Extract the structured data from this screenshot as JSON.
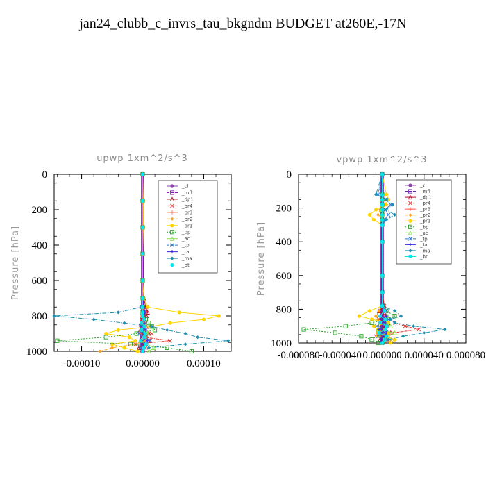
{
  "title": "jan24_clubb_c_invrs_tau_bkgndm  BUDGET at260E,-17N",
  "chart_data": [
    {
      "type": "line",
      "title": "upwp   1xm^2/s^3",
      "ylabel": "Pressure [hPa]",
      "xlabel": "",
      "xlim": [
        -0.000145,
        0.000145
      ],
      "ylim": [
        1000,
        0
      ],
      "xticks": [
        -0.0001,
        0,
        0.0001
      ],
      "xtick_labels": [
        "-0.00010",
        "0.00000",
        "0.00010"
      ],
      "yticks": [
        0,
        200,
        400,
        600,
        800,
        1000
      ],
      "ytick_labels": [
        "0",
        "200",
        "400",
        "600",
        "800",
        "1000"
      ],
      "legend_position": "top-right",
      "pressure": [
        0,
        150,
        300,
        450,
        600,
        700,
        750,
        780,
        800,
        820,
        840,
        860,
        880,
        900,
        920,
        940,
        960,
        980,
        1000
      ],
      "series": [
        {
          "name": "_cl",
          "color": "#8e44ad",
          "values": [
            0,
            0,
            0,
            0,
            0,
            0,
            0,
            0,
            0,
            0,
            0,
            0,
            0,
            0,
            0,
            0,
            0,
            0,
            0
          ]
        },
        {
          "name": "_mfl",
          "color": "#7b1fa2",
          "values": [
            0,
            0,
            0,
            0,
            0,
            0,
            0,
            0,
            0,
            0,
            0,
            0,
            0,
            0,
            0,
            0,
            0,
            0,
            0
          ]
        },
        {
          "name": "_dp1",
          "color": "#b0102a",
          "values": [
            0,
            0,
            0,
            0,
            0,
            2e-06,
            5e-06,
            8e-06,
            6e-06,
            2e-06,
            -3e-06,
            6e-06,
            -4e-06,
            1e-05,
            -2e-06,
            1.2e-05,
            4e-06,
            -6e-06,
            0
          ]
        },
        {
          "name": "_pr4",
          "color": "#e0302a",
          "values": [
            0,
            0,
            0,
            0,
            0,
            0,
            2e-06,
            4e-06,
            3e-06,
            -2e-06,
            5e-06,
            -3e-06,
            4e-06,
            1.5e-05,
            2e-06,
            4.5e-05,
            -1.2e-05,
            5e-06,
            0
          ]
        },
        {
          "name": "_pr3",
          "color": "#ff5a36",
          "values": [
            0,
            0,
            0,
            0,
            0,
            0,
            0,
            2e-06,
            3e-06,
            2e-06,
            -2e-06,
            4e-06,
            2e-06,
            -4e-06,
            8e-06,
            6e-06,
            -3e-06,
            3e-06,
            0
          ]
        },
        {
          "name": "_pr2",
          "color": "#ffa020",
          "values": [
            0,
            0,
            0,
            0,
            0,
            0,
            0,
            0,
            -1e-06,
            2e-06,
            0,
            2e-06,
            -3e-06,
            6e-06,
            -2e-06,
            4e-06,
            -1.2e-05,
            -5e-05,
            -7e-05
          ]
        },
        {
          "name": "_pr1",
          "color": "#ffd400",
          "values": [
            0,
            1e-06,
            1e-06,
            0,
            0,
            2e-06,
            8e-06,
            6e-05,
            0.000125,
            0.0001,
            4.5e-05,
            1.5e-05,
            -4e-05,
            -6e-05,
            -2.2e-05,
            -1.2e-05,
            -5e-05,
            -3e-05,
            -8e-06
          ]
        },
        {
          "name": "_bp",
          "color": "#2ca02c",
          "values": [
            0,
            0,
            0,
            0,
            0,
            0,
            0,
            0,
            2e-06,
            5e-06,
            1e-05,
            1.5e-05,
            2e-05,
            -1e-05,
            -6e-05,
            -0.00014,
            -2e-05,
            4e-05,
            8e-05
          ]
        },
        {
          "name": "_ac",
          "color": "#8ee05a",
          "values": [
            0,
            0,
            0,
            0,
            0,
            0,
            0,
            0,
            0,
            3e-06,
            4e-06,
            2e-06,
            6e-06,
            8e-06,
            5e-06,
            -4e-06,
            8e-06,
            1.8e-05,
            1e-05
          ]
        },
        {
          "name": "_tp",
          "color": "#2b7bd8",
          "values": [
            0,
            0,
            0,
            0,
            0,
            0,
            -2e-06,
            2e-06,
            -1e-06,
            3e-06,
            -2e-06,
            2e-06,
            3e-06,
            -6e-06,
            5e-06,
            1.2e-05,
            6e-06,
            -3e-06,
            0
          ]
        },
        {
          "name": "_ta",
          "color": "#3b2bd8",
          "values": [
            0,
            0,
            0,
            0,
            0,
            0,
            2e-06,
            4e-06,
            2e-06,
            1e-06,
            3e-06,
            -3e-06,
            6e-06,
            4e-06,
            -4e-06,
            8e-06,
            -3e-06,
            2e-06,
            0
          ]
        },
        {
          "name": "_ma",
          "color": "#1f8fb0",
          "values": [
            0,
            0,
            0,
            0,
            0,
            0,
            -3e-06,
            -4e-05,
            -0.000145,
            -8e-05,
            -3e-05,
            1.5e-05,
            4e-05,
            7e-05,
            9e-05,
            0.00014,
            7e-05,
            1e-05,
            0
          ]
        },
        {
          "name": "_bt",
          "color": "#00e5ee",
          "values": [
            0,
            0,
            0,
            0,
            0,
            0,
            0,
            0,
            0,
            2e-06,
            -2e-06,
            3e-06,
            -2e-06,
            4e-06,
            2e-06,
            -3e-06,
            5e-06,
            2e-06,
            0
          ]
        }
      ]
    },
    {
      "type": "line",
      "title": "vpwp   1xm^2/s^3",
      "ylabel": "Pressure [hPa]",
      "xlabel": "",
      "xlim": [
        -8e-05,
        8e-05
      ],
      "ylim": [
        1000,
        0
      ],
      "xticks": [
        -8e-05,
        -4e-05,
        0,
        4e-05,
        8e-05
      ],
      "xtick_labels": [
        "-0.000080",
        "-0.000040",
        "0.000000",
        "0.000040",
        "0.000080"
      ],
      "yticks": [
        0,
        200,
        400,
        600,
        800,
        1000
      ],
      "ytick_labels": [
        "0",
        "200",
        "400",
        "600",
        "800",
        "1000"
      ],
      "legend_position": "top-right",
      "pressure": [
        0,
        120,
        150,
        180,
        210,
        240,
        270,
        300,
        400,
        600,
        700,
        780,
        810,
        840,
        860,
        880,
        900,
        920,
        940,
        960,
        980,
        1000
      ],
      "series": [
        {
          "name": "_cl",
          "color": "#8e44ad",
          "values": [
            0,
            0,
            0,
            0,
            0,
            0,
            0,
            0,
            0,
            0,
            0,
            0,
            0,
            0,
            0,
            0,
            0,
            0,
            0,
            0,
            0,
            0
          ]
        },
        {
          "name": "_mfl",
          "color": "#7b1fa2",
          "values": [
            0,
            0,
            0,
            0,
            0,
            0,
            0,
            0,
            0,
            0,
            0,
            0,
            0,
            0,
            0,
            0,
            0,
            0,
            0,
            0,
            0,
            0
          ]
        },
        {
          "name": "_dp1",
          "color": "#b0102a",
          "values": [
            0,
            0,
            0,
            0,
            0,
            0,
            0,
            0,
            0,
            0,
            0,
            2e-06,
            -3e-06,
            4e-06,
            -2e-06,
            6e-06,
            3e-06,
            -4e-06,
            8e-06,
            3e-06,
            -2e-06,
            0
          ]
        },
        {
          "name": "_pr4",
          "color": "#e0302a",
          "values": [
            0,
            0,
            0,
            0,
            0,
            0,
            0,
            0,
            0,
            0,
            0,
            2e-06,
            4e-06,
            -3e-06,
            6e-06,
            1.2e-05,
            2.2e-05,
            3.5e-05,
            1e-05,
            -6e-06,
            4e-06,
            0
          ]
        },
        {
          "name": "_pr3",
          "color": "#ff5a36",
          "values": [
            0,
            0,
            0,
            0,
            0,
            0,
            0,
            0,
            0,
            0,
            0,
            0,
            2e-06,
            3e-06,
            -2e-06,
            4e-06,
            6e-06,
            3e-06,
            -4e-06,
            5e-06,
            2e-06,
            0
          ]
        },
        {
          "name": "_pr2",
          "color": "#ffa020",
          "values": [
            0,
            0,
            3e-06,
            4e-06,
            -2e-06,
            -4e-06,
            2e-06,
            0,
            0,
            0,
            0,
            0,
            -3e-06,
            -6e-06,
            -4e-06,
            3e-06,
            -4e-06,
            2e-06,
            -5e-06,
            4e-06,
            1.2e-05,
            0
          ]
        },
        {
          "name": "_pr1",
          "color": "#ffd400",
          "values": [
            0,
            4e-06,
            6e-06,
            3e-06,
            -6e-06,
            -1.2e-05,
            -8e-06,
            0,
            0,
            0,
            0,
            0,
            -1.2e-05,
            -2.2e-05,
            -1e-05,
            6e-06,
            -8e-06,
            -4e-06,
            6e-06,
            -4e-06,
            1.2e-05,
            8e-06
          ]
        },
        {
          "name": "_bp",
          "color": "#2ca02c",
          "values": [
            0,
            0,
            0,
            0,
            0,
            0,
            0,
            0,
            0,
            0,
            0,
            0,
            4e-06,
            1.2e-05,
            6e-06,
            -1e-05,
            -3.5e-05,
            -7.5e-05,
            -4.5e-05,
            -2e-05,
            -1e-05,
            -4e-06
          ]
        },
        {
          "name": "_ac",
          "color": "#8ee05a",
          "values": [
            0,
            0,
            0,
            0,
            0,
            0,
            0,
            0,
            0,
            0,
            0,
            0,
            2e-06,
            5e-06,
            6e-06,
            4e-06,
            8e-06,
            -4e-06,
            1.2e-05,
            6e-06,
            3e-06,
            0
          ]
        },
        {
          "name": "_tp",
          "color": "#2b7bd8",
          "values": [
            0,
            -4e-06,
            4e-06,
            8e-06,
            3e-06,
            6e-06,
            2e-06,
            0,
            0,
            0,
            0,
            0,
            4e-06,
            -3e-06,
            6e-06,
            2e-06,
            -5e-06,
            4e-06,
            2e-06,
            -4e-06,
            3e-06,
            0
          ]
        },
        {
          "name": "_ta",
          "color": "#3b2bd8",
          "values": [
            0,
            0,
            0,
            0,
            0,
            0,
            0,
            0,
            0,
            0,
            0,
            0,
            2e-06,
            4e-06,
            -2e-06,
            3e-06,
            5e-06,
            -3e-06,
            4e-06,
            2e-06,
            -2e-06,
            0
          ]
        },
        {
          "name": "_ma",
          "color": "#1f8fb0",
          "values": [
            0,
            -6e-06,
            4e-06,
            1e-05,
            4e-06,
            1.2e-05,
            4e-06,
            0,
            0,
            0,
            0,
            0,
            1.2e-05,
            1.8e-05,
            8e-06,
            1.2e-05,
            3e-05,
            6e-05,
            4e-05,
            2e-05,
            6e-06,
            0
          ]
        },
        {
          "name": "_bt",
          "color": "#00e5ee",
          "values": [
            0,
            0,
            0,
            0,
            0,
            0,
            0,
            0,
            0,
            0,
            0,
            0,
            2e-06,
            -2e-06,
            3e-06,
            -2e-06,
            4e-06,
            3e-06,
            -3e-06,
            4e-06,
            2e-06,
            0
          ]
        }
      ]
    }
  ]
}
